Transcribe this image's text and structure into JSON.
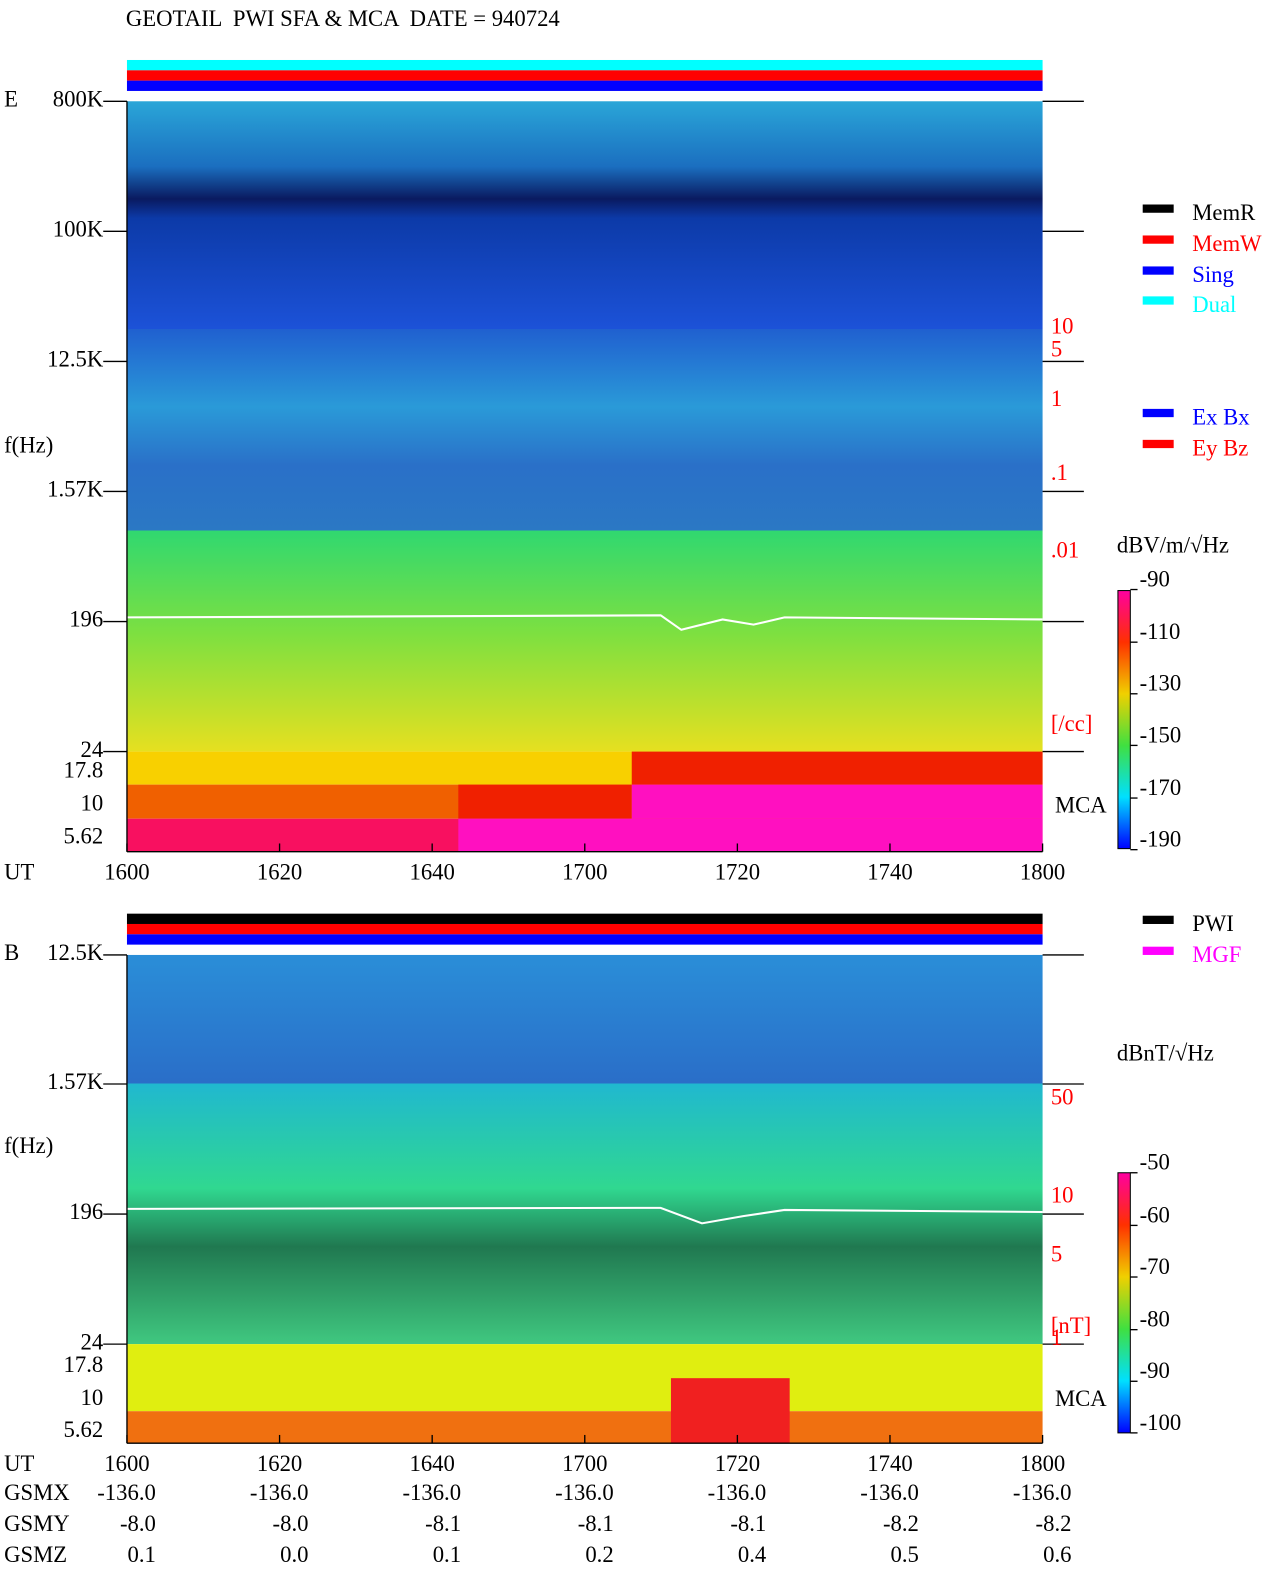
{
  "header": {
    "title": "GEOTAIL  PWI SFA & MCA  DATE = 940724"
  },
  "panels": [
    {
      "label": "E",
      "ylabel": "f(Hz)",
      "xlabel": "UT",
      "yticks": [
        "800K",
        "100K",
        "12.5K",
        "1.57K",
        "196",
        "24",
        "17.8",
        "10",
        "5.62"
      ],
      "xticks": [
        "1600",
        "1620",
        "1640",
        "1700",
        "1720",
        "1740",
        "1800"
      ],
      "right_scale": [
        "10",
        "5",
        "1",
        ".1",
        ".01",
        "[/cc]"
      ],
      "mca": "MCA",
      "legends": [
        [
          {
            "name": "MemR",
            "color": "#000000"
          },
          {
            "name": "MemW",
            "color": "#ff0000"
          },
          {
            "name": "Sing",
            "color": "#0000ff"
          },
          {
            "name": "Dual",
            "color": "#00ffff"
          }
        ],
        [
          {
            "name": "Ex Bx",
            "color": "#0000ff"
          },
          {
            "name": "Ey Bz",
            "color": "#ff0000"
          }
        ]
      ],
      "unit": "dBV/m/√Hz",
      "colorbar_ticks": [
        "-90",
        "-110",
        "-130",
        "-150",
        "-170",
        "-190"
      ]
    },
    {
      "label": "B",
      "ylabel": "f(Hz)",
      "xlabel": "UT",
      "yticks": [
        "12.5K",
        "1.57K",
        "196",
        "24",
        "17.8",
        "10",
        "5.62"
      ],
      "xticks": [
        "1600",
        "1620",
        "1640",
        "1700",
        "1720",
        "1740",
        "1800"
      ],
      "right_scale": [
        "50",
        "10",
        "5",
        "1",
        "[nT]"
      ],
      "mca": "MCA",
      "legends": [
        [
          {
            "name": "PWI",
            "color": "#000000"
          },
          {
            "name": "MGF",
            "color": "#ff00ff"
          }
        ]
      ],
      "unit": "dBnT/√Hz",
      "colorbar_ticks": [
        "-50",
        "-60",
        "-70",
        "-80",
        "-90",
        "-100"
      ]
    }
  ],
  "orbit": {
    "rows": [
      {
        "name": "GSMX",
        "values": [
          "-136.0",
          "-136.0",
          "-136.0",
          "-136.0",
          "-136.0",
          "-136.0",
          "-136.0"
        ]
      },
      {
        "name": "GSMY",
        "values": [
          "-8.0",
          "-8.0",
          "-8.1",
          "-8.1",
          "-8.1",
          "-8.2",
          "-8.2"
        ]
      },
      {
        "name": "GSMZ",
        "values": [
          "0.1",
          "0.0",
          "0.1",
          "0.2",
          "0.4",
          "0.5",
          "0.6"
        ]
      }
    ]
  }
}
